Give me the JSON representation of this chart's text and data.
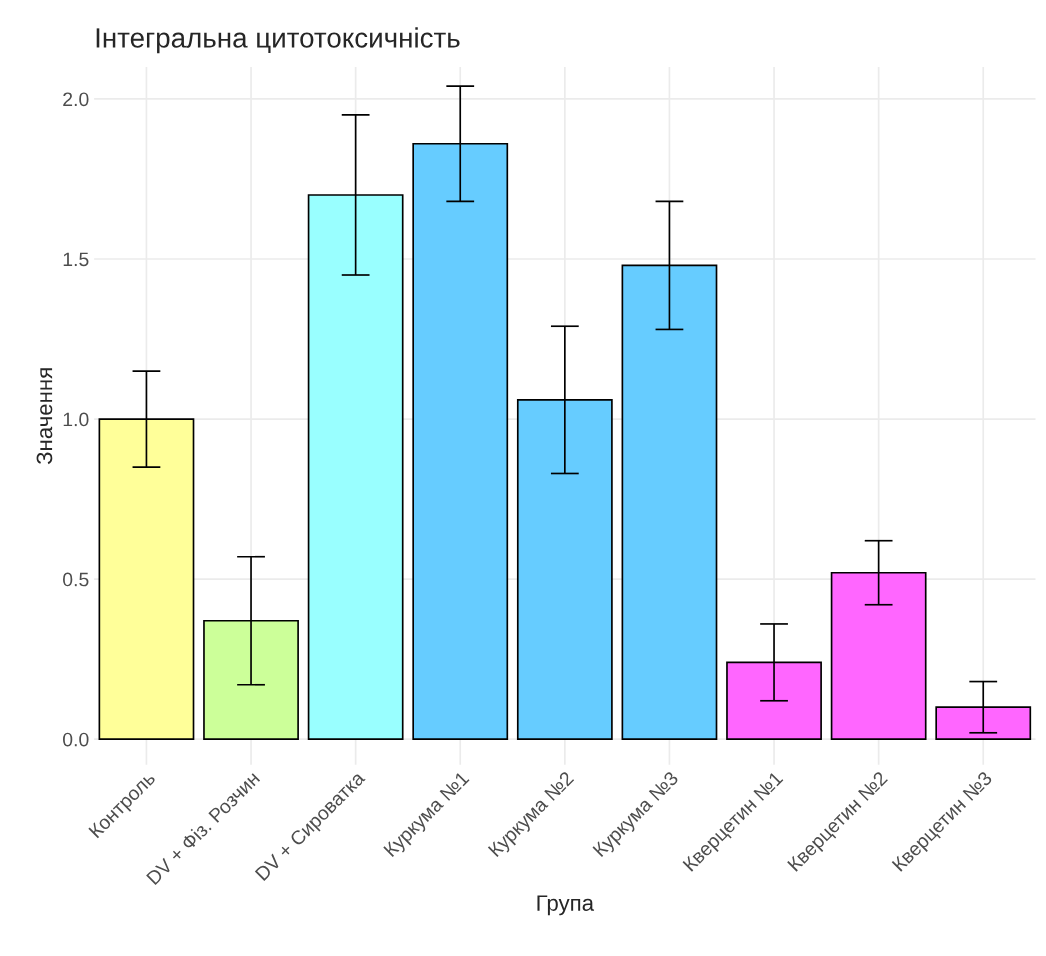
{
  "chart_data": {
    "type": "bar",
    "title": "Інтегральна цитотоксичність",
    "xlabel": "Група",
    "ylabel": "Значення",
    "categories": [
      "Контроль",
      "DV + Фіз. Розчин",
      "DV + Сироватка",
      "Куркума №1",
      "Куркума №2",
      "Куркума №3",
      "Кверцетин №1",
      "Кверцетин №2",
      "Кверцетин №3"
    ],
    "values": [
      1.0,
      0.37,
      1.7,
      1.86,
      1.06,
      1.48,
      0.24,
      0.52,
      0.1
    ],
    "errors": [
      0.15,
      0.2,
      0.25,
      0.18,
      0.23,
      0.2,
      0.12,
      0.1,
      0.08
    ],
    "colors": [
      "#ffff99",
      "#ccff99",
      "#99ffff",
      "#66ccff",
      "#66ccff",
      "#66ccff",
      "#ff66ff",
      "#ff66ff",
      "#ff66ff"
    ],
    "ylim": [
      -0.08,
      2.1
    ],
    "yticks": [
      {
        "value": 0,
        "label": "0.0"
      },
      0.5,
      {
        "value": 1,
        "label": "1.0"
      },
      1.5,
      {
        "value": 2,
        "label": "2.0"
      }
    ],
    "grid": true
  }
}
